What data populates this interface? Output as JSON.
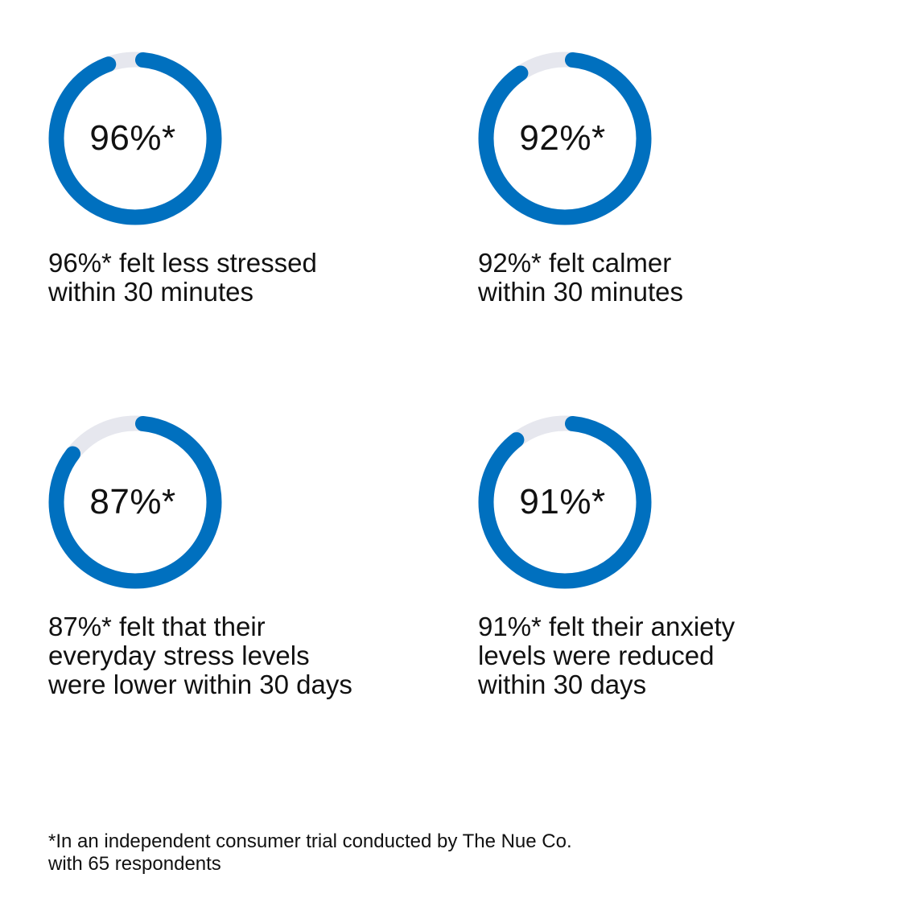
{
  "chart_data": [
    {
      "type": "pie",
      "value": 96,
      "label": "96%*",
      "caption": "96%* felt less stressed\nwithin 30 minutes"
    },
    {
      "type": "pie",
      "value": 92,
      "label": "92%*",
      "caption": "92%* felt calmer\nwithin 30 minutes"
    },
    {
      "type": "pie",
      "value": 87,
      "label": "87%*",
      "caption": "87%* felt that their\neveryday stress levels\nwere lower within 30 days"
    },
    {
      "type": "pie",
      "value": 91,
      "label": "91%*",
      "caption": "91%* felt their anxiety\nlevels were reduced\nwithin 30 days"
    }
  ],
  "colors": {
    "accent": "#0070bf",
    "track": "#e6e7ee"
  },
  "footnote": "*In an independent consumer trial conducted by The Nue Co.\nwith 65 respondents"
}
